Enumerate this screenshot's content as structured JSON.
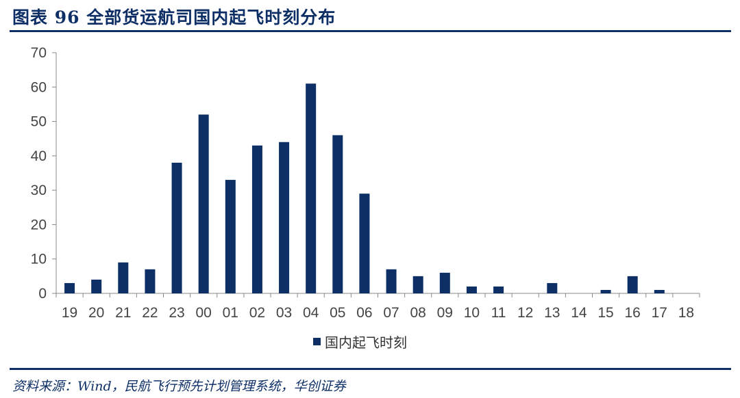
{
  "header": {
    "title": "图表 96   全部货运航司国内起飞时刻分布"
  },
  "footer": {
    "source": "资料来源：Wind，民航飞行预先计划管理系统，华创证券"
  },
  "colors": {
    "bar": "#0d2f66",
    "accent_rule": "#0d2f66",
    "axis": "#888888",
    "tick_text": "#444444"
  },
  "chart_data": {
    "type": "bar",
    "categories": [
      "19",
      "20",
      "21",
      "22",
      "23",
      "00",
      "01",
      "02",
      "03",
      "04",
      "05",
      "06",
      "07",
      "08",
      "09",
      "10",
      "11",
      "12",
      "13",
      "14",
      "15",
      "16",
      "17",
      "18"
    ],
    "series": [
      {
        "name": "国内起飞时刻",
        "values": [
          3,
          4,
          9,
          7,
          38,
          52,
          33,
          43,
          44,
          61,
          46,
          29,
          7,
          5,
          6,
          2,
          2,
          0,
          3,
          0,
          1,
          5,
          1,
          0
        ]
      }
    ],
    "ylim": [
      0,
      70
    ],
    "yticks": [
      "0",
      "10",
      "20",
      "30",
      "40",
      "50",
      "60",
      "70"
    ],
    "xlabel": "",
    "ylabel": "",
    "grid": false,
    "legend": "bottom-center"
  }
}
